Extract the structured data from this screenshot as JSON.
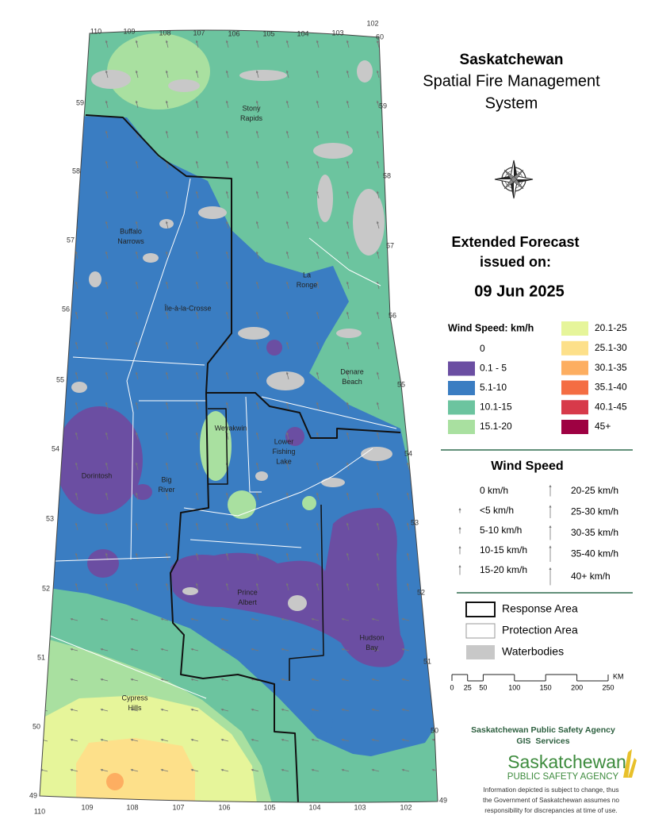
{
  "header": {
    "title": "Saskatchewan",
    "subtitle": [
      "Spatial Fire Management",
      "System"
    ]
  },
  "forecast": {
    "heading": [
      "Extended Forecast",
      "issued on:"
    ],
    "date": "09 Jun 2025"
  },
  "speed_legend": {
    "title": "Wind Speed: km/h",
    "items": [
      {
        "label": "0",
        "color": "#ffffff"
      },
      {
        "label": "0.1 - 5",
        "color": "#6b4ea2"
      },
      {
        "label": "5.1-10",
        "color": "#3a7dc2"
      },
      {
        "label": "10.1-15",
        "color": "#6cc49f"
      },
      {
        "label": "15.1-20",
        "color": "#a9e0a0"
      },
      {
        "label": "20.1-25",
        "color": "#e6f59a"
      },
      {
        "label": "25.1-30",
        "color": "#fde08a"
      },
      {
        "label": "30.1-35",
        "color": "#fdae61"
      },
      {
        "label": "35.1-40",
        "color": "#f46d43"
      },
      {
        "label": "40.1-45",
        "color": "#d73a4a"
      },
      {
        "label": "45+",
        "color": "#9e0142"
      }
    ]
  },
  "arrow_legend": {
    "title": "Wind Speed",
    "items": [
      "0 km/h",
      "<5 km/h",
      "5-10 km/h",
      "10-15 km/h",
      "15-20 km/h",
      "20-25 km/h",
      "25-30 km/h",
      "30-35 km/h",
      "35-40 km/h",
      "40+ km/h"
    ]
  },
  "boundary_legend": {
    "items": [
      "Response Area",
      "Protection Area",
      "Waterbodies"
    ]
  },
  "scale_bar": {
    "ticks": [
      0,
      25,
      50,
      100,
      150,
      200,
      250
    ],
    "unit": "KM"
  },
  "agency": {
    "name": "Saskatchewan Public Safety Agency",
    "unit": "GIS  Services",
    "logo": [
      "Saskatchewan",
      "PUBLIC SAFETY AGENCY"
    ],
    "disclaimer": [
      "Information depicted is subject to change, thus",
      "the Government of Saskatchewan assumes no",
      "responsibility for discrepancies at time of use."
    ]
  },
  "map": {
    "places": [
      [
        "Stony",
        "Rapids"
      ],
      [
        "Buffalo",
        "Narrows"
      ],
      [
        "La",
        "Ronge"
      ],
      [
        "Île-à-la-Crosse"
      ],
      [
        "Denare",
        "Beach"
      ],
      [
        "Weyakwin"
      ],
      [
        "Lower",
        "Fishing",
        "Lake"
      ],
      [
        "Dorintosh"
      ],
      [
        "Big",
        "River"
      ],
      [
        "Prince",
        "Albert"
      ],
      [
        "Hudson",
        "Bay"
      ],
      [
        "Cypress",
        "Hills"
      ]
    ],
    "longitude_top": [
      110,
      109,
      108,
      107,
      106,
      105,
      104,
      103,
      102
    ],
    "longitude_bottom": [
      110,
      109,
      108,
      107,
      106,
      105,
      104,
      103,
      102
    ],
    "latitude_left": [
      59,
      58,
      57,
      56,
      55,
      54,
      53,
      52,
      51,
      50,
      49
    ],
    "latitude_right": [
      60,
      59,
      58,
      57,
      56,
      55,
      54,
      53,
      52,
      51,
      50,
      49
    ]
  }
}
